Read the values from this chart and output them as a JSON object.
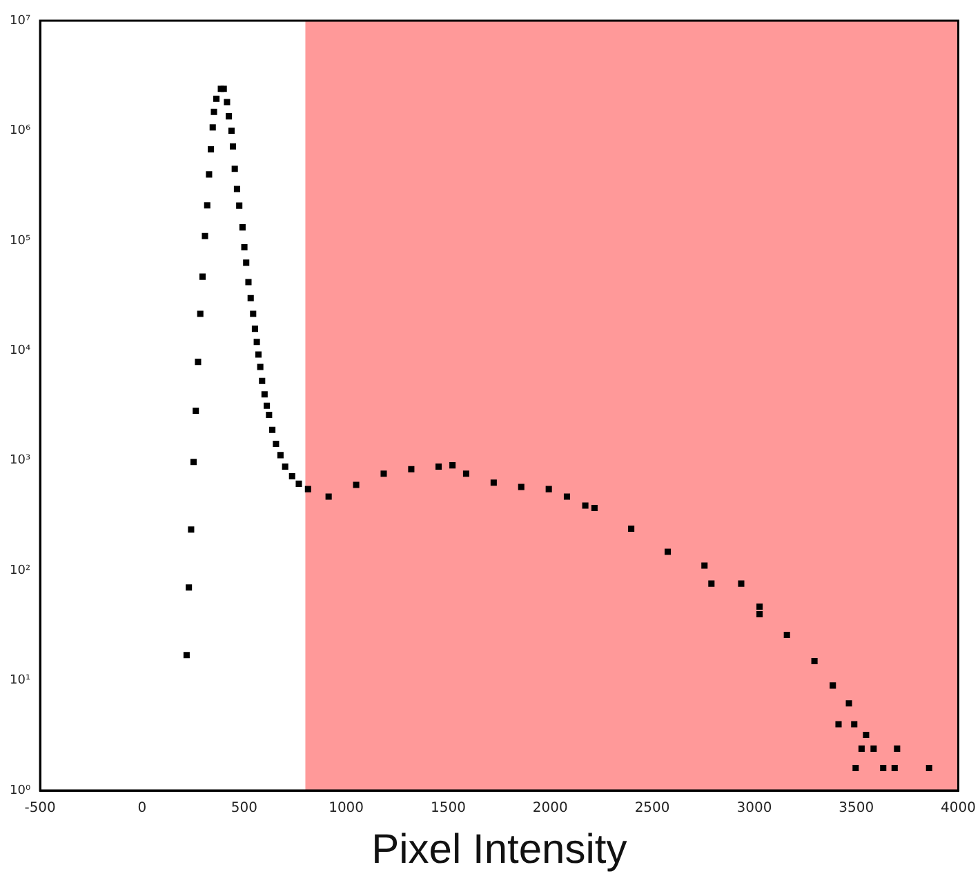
{
  "chart_data": {
    "type": "scatter",
    "xlabel": "Pixel Intensity",
    "log": "y",
    "grid": false,
    "legend": false,
    "marker": "square",
    "xlim": [
      -500,
      4000
    ],
    "xticks": [
      -500,
      0,
      500,
      1000,
      1500,
      2000,
      2500,
      3000,
      3500,
      4000
    ],
    "ylim": [
      1,
      10000000
    ],
    "yticks": [
      {
        "value": 1,
        "label": "10⁰"
      },
      {
        "value": 10,
        "label": "10¹"
      },
      {
        "value": 100,
        "label": "10²"
      },
      {
        "value": 1000,
        "label": "10³"
      },
      {
        "value": 10000,
        "label": "10⁴"
      },
      {
        "value": 100000,
        "label": "10⁵"
      },
      {
        "value": 1000000,
        "label": "10⁶"
      },
      {
        "value": 10000000,
        "label": "10⁷"
      }
    ],
    "bands": [
      {
        "axis": "x",
        "from": 800,
        "to": 4000,
        "color": "#ff9999"
      }
    ],
    "series": [
      {
        "color": "#000000",
        "x": [
          218,
          229,
          240,
          252,
          263,
          274,
          285,
          296,
          308,
          319,
          328,
          337,
          346,
          352,
          364,
          386,
          400,
          416,
          425,
          438,
          445,
          454,
          465,
          476,
          492,
          501,
          510,
          521,
          532,
          544,
          553,
          562,
          570,
          579,
          588,
          600,
          611,
          622,
          638,
          656,
          678,
          701,
          735,
          768,
          813,
          914,
          1049,
          1184,
          1319,
          1453,
          1521,
          1588,
          1723,
          1858,
          1993,
          2082,
          2172,
          2217,
          2397,
          2576,
          2756,
          2790,
          2936,
          3026,
          3026,
          3160,
          3295,
          3385,
          3413,
          3464,
          3490,
          3497,
          3526,
          3548,
          3585,
          3632,
          3688,
          3700,
          3857
        ],
        "values": [
          17,
          70,
          236,
          970,
          2840,
          7900,
          21600,
          47000,
          110000,
          209000,
          400000,
          676000,
          1070000,
          1480000,
          1950000,
          2400000,
          2400000,
          1820000,
          1350000,
          1000000,
          720000,
          450000,
          295000,
          208000,
          132000,
          87000,
          63000,
          42000,
          30000,
          21600,
          15800,
          12000,
          9200,
          7100,
          5300,
          4000,
          3150,
          2600,
          1900,
          1420,
          1120,
          880,
          720,
          615,
          550,
          470,
          600,
          760,
          835,
          880,
          905,
          760,
          630,
          575,
          550,
          470,
          390,
          370,
          240,
          148,
          111,
          76,
          76,
          47,
          40,
          26,
          15,
          9,
          4,
          6.2,
          4,
          1.6,
          2.4,
          3.2,
          2.4,
          1.6,
          1.6,
          2.4,
          1.6
        ]
      }
    ]
  }
}
